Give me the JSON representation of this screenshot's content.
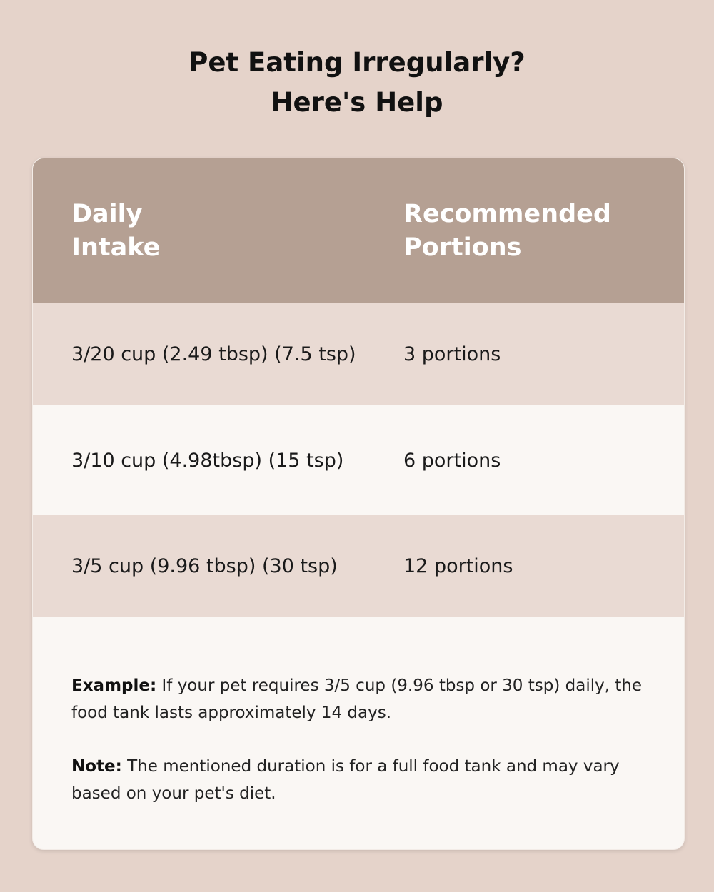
{
  "title_line1": "Pet Eating Irregularly?",
  "title_line2": "Here's Help",
  "table": {
    "headers": [
      {
        "line1": "Daily",
        "line2": "Intake"
      },
      {
        "line1": "Recommended",
        "line2": "Portions"
      }
    ],
    "rows": [
      [
        "3/20 cup (2.49 tbsp) (7.5 tsp)",
        "3 portions"
      ],
      [
        "3/10 cup (4.98tbsp) (15 tsp)",
        "6 portions"
      ],
      [
        "3/5 cup (9.96 tbsp) (30 tsp)",
        "12 portions"
      ]
    ]
  },
  "example": {
    "label": "Example:",
    "text": " If your pet requires 3/5 cup (9.96 tbsp or 30 tsp) daily, the food tank lasts approximately 14 days."
  },
  "note": {
    "label": "Note:",
    "text": " The mentioned duration is for a full food tank and may vary based on your pet's diet."
  }
}
